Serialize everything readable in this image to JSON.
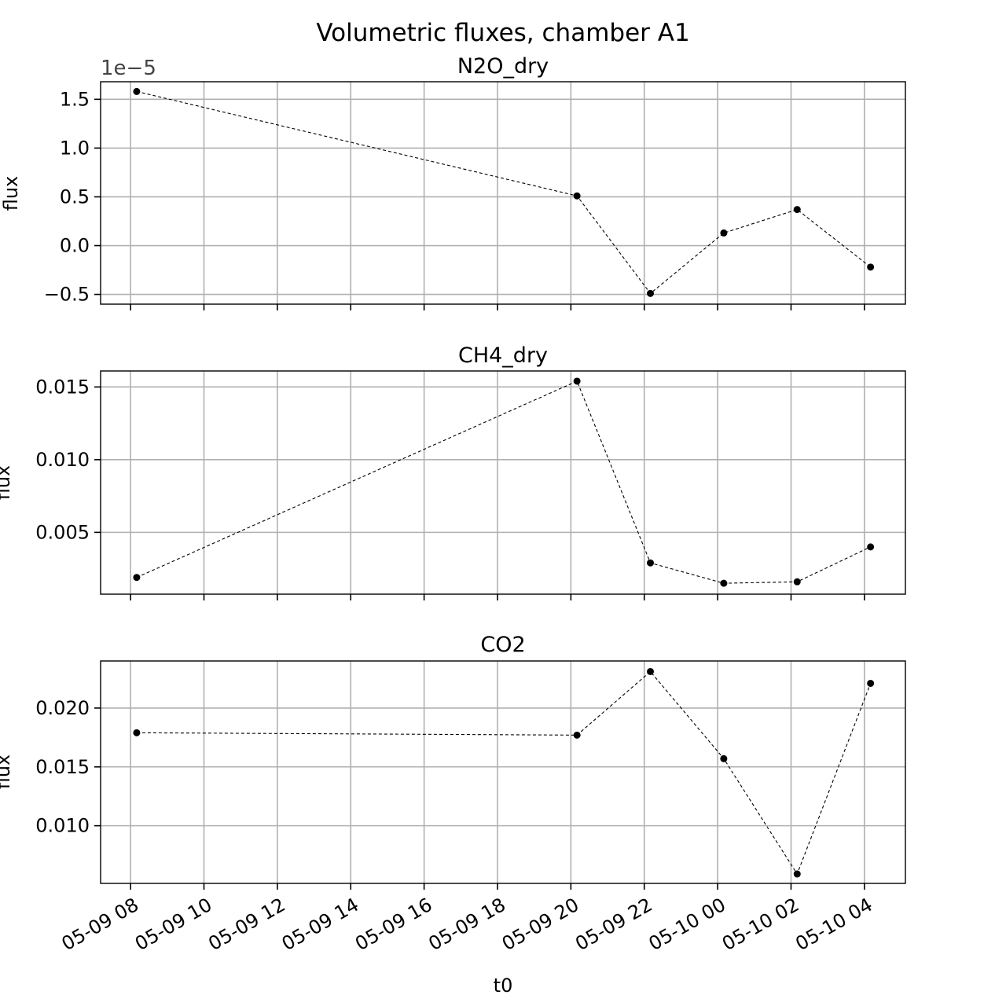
{
  "figure": {
    "title": "Volumetric fluxes, chamber A1",
    "xlabel": "t0"
  },
  "style": {
    "marker_color": "#000000",
    "line_color": "#000000",
    "grid_color": "#b0b0b0",
    "line_style": "dashed"
  },
  "chart_data": [
    {
      "type": "line",
      "title": "N2O_dry",
      "ylabel": "flux",
      "y_offset_label": "1e−5",
      "x_axis_type": "datetime",
      "x_tick_labels": [
        "05-09 08",
        "05-09 10",
        "05-09 12",
        "05-09 14",
        "05-09 16",
        "05-09 18",
        "05-09 20",
        "05-09 22",
        "05-10 00",
        "05-10 02",
        "05-10 04"
      ],
      "x_tick_labels_visible": false,
      "xlim": [
        "2024-05-09T07:11",
        "2024-05-10T05:07"
      ],
      "y_ticks": [
        -0.5,
        0.0,
        0.5,
        1.0,
        1.5
      ],
      "y_tick_labels": [
        "−0.5",
        "0.0",
        "0.5",
        "1.0",
        "1.5"
      ],
      "ylim": [
        -0.6,
        1.68
      ],
      "grid": true,
      "series": [
        {
          "x": [
            "2024-05-09T08:10",
            "2024-05-09T20:10",
            "2024-05-09T22:10",
            "2024-05-10T00:10",
            "2024-05-10T02:10",
            "2024-05-10T04:10"
          ],
          "y": [
            1.58,
            0.51,
            -0.49,
            0.13,
            0.37,
            -0.22
          ]
        }
      ]
    },
    {
      "type": "line",
      "title": "CH4_dry",
      "ylabel": "flux",
      "x_axis_type": "datetime",
      "x_tick_labels": [
        "05-09 08",
        "05-09 10",
        "05-09 12",
        "05-09 14",
        "05-09 16",
        "05-09 18",
        "05-09 20",
        "05-09 22",
        "05-10 00",
        "05-10 02",
        "05-10 04"
      ],
      "x_tick_labels_visible": false,
      "xlim": [
        "2024-05-09T07:11",
        "2024-05-10T05:07"
      ],
      "y_ticks": [
        0.005,
        0.01,
        0.015
      ],
      "y_tick_labels": [
        "0.005",
        "0.010",
        "0.015"
      ],
      "ylim": [
        0.00075,
        0.0161
      ],
      "grid": true,
      "series": [
        {
          "x": [
            "2024-05-09T08:10",
            "2024-05-09T20:10",
            "2024-05-09T22:10",
            "2024-05-10T00:10",
            "2024-05-10T02:10",
            "2024-05-10T04:10"
          ],
          "y": [
            0.0019,
            0.0154,
            0.0029,
            0.0015,
            0.0016,
            0.004
          ]
        }
      ]
    },
    {
      "type": "line",
      "title": "CO2",
      "ylabel": "flux",
      "x_axis_type": "datetime",
      "x_tick_labels": [
        "05-09 08",
        "05-09 10",
        "05-09 12",
        "05-09 14",
        "05-09 16",
        "05-09 18",
        "05-09 20",
        "05-09 22",
        "05-10 00",
        "05-10 02",
        "05-10 04"
      ],
      "x_tick_labels_visible": true,
      "xlim": [
        "2024-05-09T07:11",
        "2024-05-10T05:07"
      ],
      "y_ticks": [
        0.01,
        0.015,
        0.02
      ],
      "y_tick_labels": [
        "0.010",
        "0.015",
        "0.020"
      ],
      "ylim": [
        0.0051,
        0.024
      ],
      "grid": true,
      "series": [
        {
          "x": [
            "2024-05-09T08:10",
            "2024-05-09T20:10",
            "2024-05-09T22:10",
            "2024-05-10T00:10",
            "2024-05-10T02:10",
            "2024-05-10T04:10"
          ],
          "y": [
            0.0179,
            0.0177,
            0.0231,
            0.0157,
            0.0059,
            0.0221
          ]
        }
      ]
    }
  ]
}
